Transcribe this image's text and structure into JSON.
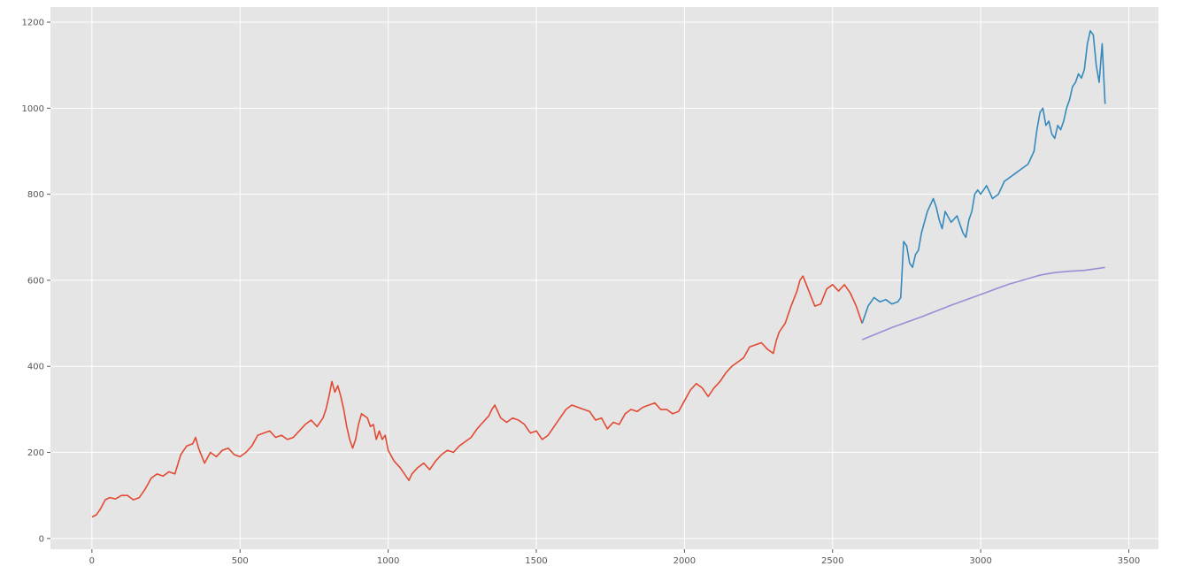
{
  "chart_data": {
    "type": "line",
    "title": "",
    "xlabel": "",
    "ylabel": "",
    "xlim": [
      -140,
      3600
    ],
    "ylim": [
      -25,
      1235
    ],
    "x_ticks": [
      0,
      500,
      1000,
      1500,
      2000,
      2500,
      3000,
      3500
    ],
    "y_ticks": [
      0,
      200,
      400,
      600,
      800,
      1000,
      1200
    ],
    "grid": true,
    "background": "#e5e5e5",
    "grid_color": "#ffffff",
    "series": [
      {
        "color": "#e24a33",
        "x": [
          0,
          15,
          30,
          45,
          60,
          80,
          100,
          120,
          140,
          160,
          180,
          200,
          220,
          240,
          260,
          280,
          300,
          320,
          340,
          350,
          360,
          380,
          400,
          420,
          440,
          460,
          480,
          500,
          520,
          540,
          560,
          580,
          600,
          620,
          640,
          660,
          680,
          700,
          720,
          740,
          760,
          780,
          790,
          800,
          810,
          820,
          830,
          840,
          850,
          860,
          870,
          880,
          890,
          900,
          910,
          920,
          930,
          940,
          950,
          960,
          970,
          980,
          990,
          1000,
          1020,
          1040,
          1060,
          1070,
          1080,
          1100,
          1120,
          1140,
          1160,
          1180,
          1200,
          1220,
          1240,
          1260,
          1280,
          1300,
          1320,
          1340,
          1350,
          1360,
          1380,
          1400,
          1420,
          1440,
          1460,
          1480,
          1500,
          1520,
          1540,
          1560,
          1580,
          1600,
          1620,
          1640,
          1660,
          1680,
          1700,
          1720,
          1740,
          1760,
          1780,
          1800,
          1820,
          1840,
          1860,
          1880,
          1900,
          1920,
          1940,
          1960,
          1980,
          2000,
          2020,
          2040,
          2060,
          2080,
          2100,
          2120,
          2140,
          2160,
          2180,
          2200,
          2220,
          2240,
          2260,
          2280,
          2300,
          2310,
          2320,
          2340,
          2360,
          2380,
          2390,
          2400,
          2420,
          2440,
          2460,
          2480,
          2500,
          2520,
          2540,
          2560,
          2580,
          2600
        ],
        "y": [
          50,
          55,
          70,
          90,
          95,
          92,
          100,
          100,
          90,
          95,
          115,
          140,
          150,
          145,
          155,
          150,
          195,
          215,
          220,
          235,
          210,
          175,
          200,
          190,
          205,
          210,
          195,
          190,
          200,
          215,
          240,
          245,
          250,
          235,
          240,
          230,
          235,
          250,
          265,
          275,
          260,
          280,
          300,
          330,
          365,
          340,
          355,
          330,
          300,
          260,
          230,
          210,
          230,
          265,
          290,
          285,
          280,
          260,
          265,
          230,
          250,
          230,
          240,
          205,
          180,
          165,
          145,
          135,
          150,
          165,
          175,
          160,
          180,
          195,
          205,
          200,
          215,
          225,
          235,
          255,
          270,
          285,
          300,
          310,
          280,
          270,
          280,
          275,
          265,
          245,
          250,
          230,
          240,
          260,
          280,
          300,
          310,
          305,
          300,
          295,
          275,
          280,
          255,
          270,
          265,
          290,
          300,
          295,
          305,
          310,
          315,
          300,
          300,
          290,
          295,
          320,
          345,
          360,
          350,
          330,
          350,
          365,
          385,
          400,
          410,
          420,
          445,
          450,
          455,
          440,
          430,
          460,
          480,
          500,
          540,
          575,
          600,
          610,
          575,
          540,
          545,
          580,
          590,
          575,
          590,
          570,
          540,
          500
        ],
        "name": ""
      },
      {
        "color": "#348abd",
        "x": [
          2600,
          2620,
          2640,
          2660,
          2680,
          2700,
          2720,
          2730,
          2740,
          2750,
          2760,
          2770,
          2780,
          2790,
          2800,
          2820,
          2840,
          2850,
          2860,
          2870,
          2880,
          2900,
          2920,
          2930,
          2940,
          2950,
          2960,
          2970,
          2980,
          2990,
          3000,
          3020,
          3040,
          3060,
          3080,
          3100,
          3120,
          3140,
          3160,
          3180,
          3190,
          3200,
          3210,
          3220,
          3230,
          3240,
          3250,
          3260,
          3270,
          3280,
          3290,
          3300,
          3310,
          3320,
          3330,
          3340,
          3350,
          3360,
          3370,
          3380,
          3390,
          3400,
          3410,
          3420
        ],
        "y": [
          500,
          540,
          560,
          550,
          555,
          545,
          550,
          560,
          690,
          680,
          640,
          630,
          660,
          670,
          710,
          760,
          790,
          770,
          740,
          720,
          760,
          735,
          750,
          730,
          710,
          700,
          740,
          760,
          800,
          810,
          800,
          820,
          790,
          800,
          830,
          840,
          850,
          860,
          870,
          900,
          950,
          990,
          1000,
          960,
          970,
          940,
          930,
          960,
          950,
          970,
          1000,
          1020,
          1050,
          1060,
          1080,
          1070,
          1090,
          1150,
          1180,
          1170,
          1100,
          1060,
          1150,
          1010
        ],
        "name": ""
      },
      {
        "color": "#988ed5",
        "x": [
          2600,
          2700,
          2800,
          2900,
          3000,
          3050,
          3100,
          3150,
          3200,
          3250,
          3300,
          3350,
          3400,
          3420
        ],
        "y": [
          462,
          490,
          515,
          542,
          567,
          580,
          592,
          602,
          612,
          618,
          621,
          623,
          628,
          630
        ],
        "name": ""
      }
    ]
  }
}
